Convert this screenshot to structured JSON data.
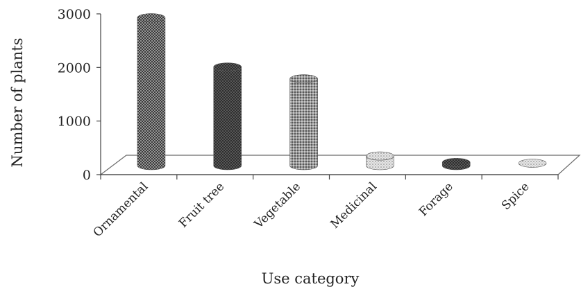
{
  "chart_data": {
    "type": "bar",
    "style": "3d-cylinder",
    "xlabel": "Use category",
    "ylabel": "Number of plants",
    "categories": [
      "Ornamental",
      "Fruit tree",
      "Vegetable",
      "Medicinal",
      "Forage",
      "Spice"
    ],
    "values": [
      2760,
      1840,
      1620,
      180,
      60,
      45
    ],
    "ylim": [
      0,
      3000
    ],
    "yticks": [
      0,
      1000,
      2000,
      3000
    ],
    "grid": false,
    "legend": "none",
    "bar_patterns": [
      "dense-dark-dots",
      "dark-dots",
      "medium-dots",
      "light-dots",
      "dark-dots",
      "light-dots"
    ]
  }
}
